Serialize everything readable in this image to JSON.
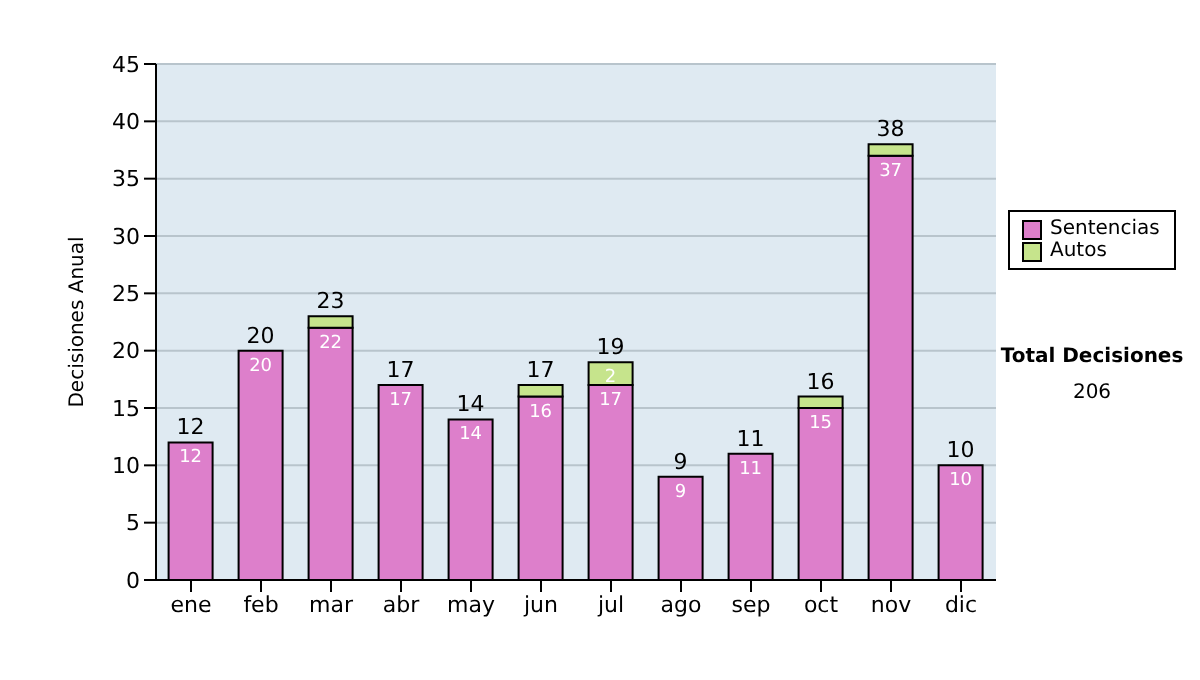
{
  "chart_data": {
    "type": "bar",
    "stacked": true,
    "ylabel": "Decisiones Anual",
    "categories": [
      "ene",
      "feb",
      "mar",
      "abr",
      "may",
      "jun",
      "jul",
      "ago",
      "sep",
      "oct",
      "nov",
      "dic"
    ],
    "series": [
      {
        "name": "Sentencias",
        "color": "#dd7fcb",
        "values": [
          12,
          20,
          22,
          17,
          14,
          16,
          17,
          9,
          11,
          15,
          37,
          10
        ],
        "value_labels": [
          "12",
          "20",
          "22",
          "17",
          "14",
          "16",
          "17",
          "9",
          "11",
          "15",
          "37",
          "10"
        ]
      },
      {
        "name": "Autos",
        "color": "#c6e48c",
        "values": [
          0,
          0,
          1,
          0,
          0,
          1,
          2,
          0,
          0,
          1,
          1,
          0
        ],
        "value_labels": [
          null,
          null,
          null,
          null,
          null,
          null,
          "2",
          null,
          null,
          null,
          null,
          null
        ]
      }
    ],
    "totals": [
      "12",
      "20",
      "23",
      "17",
      "14",
      "17",
      "19",
      "9",
      "11",
      "16",
      "38",
      "10"
    ],
    "ylim": [
      0,
      45
    ],
    "yticks": [
      0,
      5,
      10,
      15,
      20,
      25,
      30,
      35,
      40,
      45
    ],
    "grid": "y",
    "legend": "right",
    "annotations": [
      "Total Decisiones",
      "206"
    ]
  }
}
